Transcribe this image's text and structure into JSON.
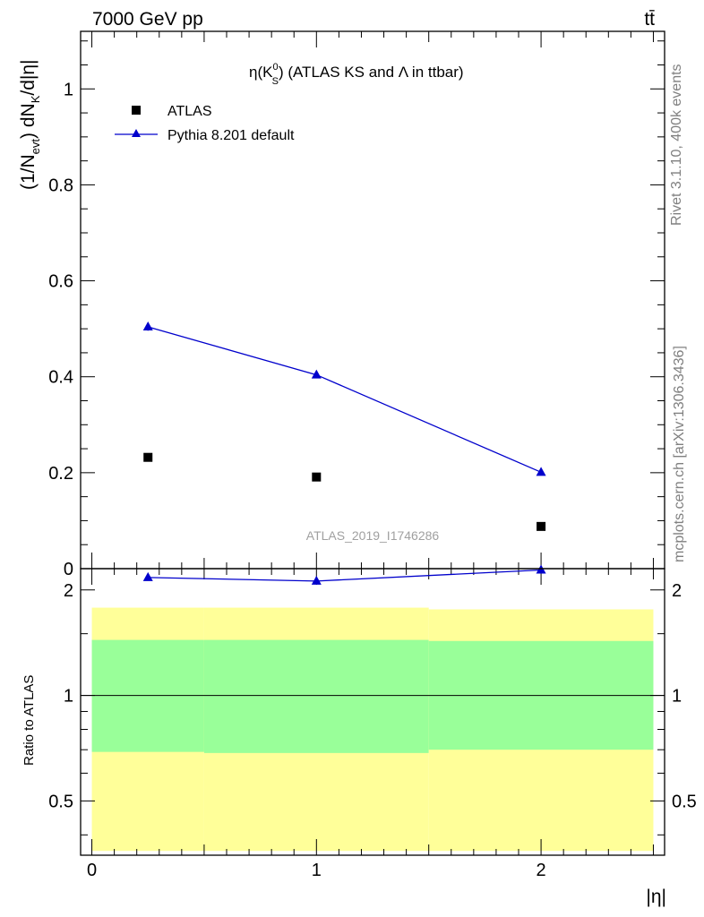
{
  "header": {
    "energy_label": "7000 GeV pp",
    "process_label": "tt̄"
  },
  "side_labels": {
    "rivet_label": "Rivet 3.1.10,  400k events",
    "source_label": "mcplots.cern.ch [arXiv:1306.3436]"
  },
  "chart_data": {
    "type": "line",
    "title_parts": {
      "pre": "η(K",
      "sup": "0",
      "sub": "S",
      "post": ") (ATLAS KS and Λ in ttbar)"
    },
    "analysis_id": "ATLAS_2019_I1746286",
    "ylabel_parts": {
      "a": "(1/N",
      "sub1": "evt",
      "b": ") dN",
      "sub2": "K",
      "c": "/d|η|"
    },
    "xlabel": "|η|",
    "ratio_ylabel": "Ratio to ATLAS",
    "xlim": [
      -0.05,
      2.55
    ],
    "ylim": [
      0,
      1.12
    ],
    "ratio_ylim": [
      0.35,
      2.3
    ],
    "ratio_log_scale": true,
    "main_yticks": [
      "0",
      "0.2",
      "0.4",
      "0.6",
      "0.8",
      "1"
    ],
    "ratio_yticks": [
      "0.5",
      "1",
      "2"
    ],
    "xticks": [
      "0",
      "1",
      "2"
    ],
    "series": [
      {
        "name": "ATLAS",
        "marker": "square",
        "color": "#000000",
        "x": [
          0.25,
          1.0,
          2.0
        ],
        "y": [
          0.232,
          0.191,
          0.088
        ]
      },
      {
        "name": "Pythia 8.201 default",
        "marker": "triangle",
        "color": "#0000cc",
        "x": [
          0.25,
          1.0,
          2.0
        ],
        "y": [
          0.504,
          0.404,
          0.201
        ],
        "yerr": [
          0.008,
          0.004,
          0.003
        ]
      }
    ],
    "ratio": {
      "x": [
        0.25,
        1.0,
        2.0
      ],
      "y": [
        2.17,
        2.12,
        2.28
      ]
    },
    "bands": [
      {
        "x0": 0.0,
        "x1": 0.5,
        "yellow": [
          0.36,
          1.78
        ],
        "green": [
          0.69,
          1.44
        ]
      },
      {
        "x0": 0.5,
        "x1": 1.5,
        "yellow": [
          0.36,
          1.78
        ],
        "green": [
          0.685,
          1.44
        ]
      },
      {
        "x0": 1.5,
        "x1": 2.5,
        "yellow": [
          0.36,
          1.76
        ],
        "green": [
          0.7,
          1.43
        ]
      }
    ],
    "colors": {
      "yellow_band": "#ffff99",
      "green_band": "#99ff99",
      "mc_line": "#0000cc",
      "data": "#000000",
      "analysis_id": "#a0a0a0",
      "side_text": "#808080"
    }
  }
}
